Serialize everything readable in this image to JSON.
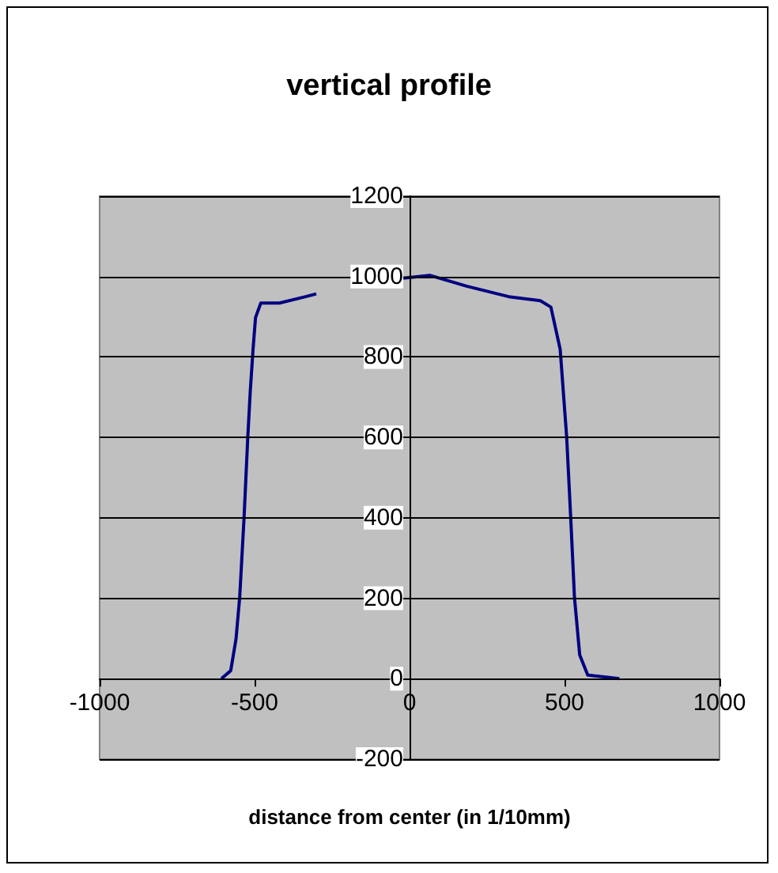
{
  "chart_data": {
    "type": "line",
    "title": "vertical profile",
    "xlabel": "distance from center (in 1/10mm)",
    "xlim": [
      -1000,
      1000
    ],
    "xticks": [
      -1000,
      -500,
      0,
      500,
      1000
    ],
    "ylim": [
      -200,
      1200
    ],
    "yticks": [
      -200,
      0,
      200,
      400,
      600,
      800,
      1000,
      1200
    ],
    "grid": "y",
    "marker": "none",
    "line_style": "solid",
    "series": [
      {
        "color": "#000080",
        "x": [
          -607,
          -577,
          -560,
          -548,
          -534,
          -522,
          -514,
          -505,
          -497,
          -480,
          -420,
          -335,
          -301,
          -200,
          -88,
          -20,
          65,
          184,
          320,
          422,
          456,
          486,
          507,
          520,
          532,
          549,
          575,
          677
        ],
        "values": [
          0,
          20,
          98,
          203,
          400,
          600,
          714,
          819,
          898,
          934,
          934,
          950,
          957,
          null,
          null,
          996,
          1003,
          976,
          950,
          940,
          924,
          819,
          600,
          400,
          203,
          59,
          9,
          0
        ]
      }
    ]
  }
}
